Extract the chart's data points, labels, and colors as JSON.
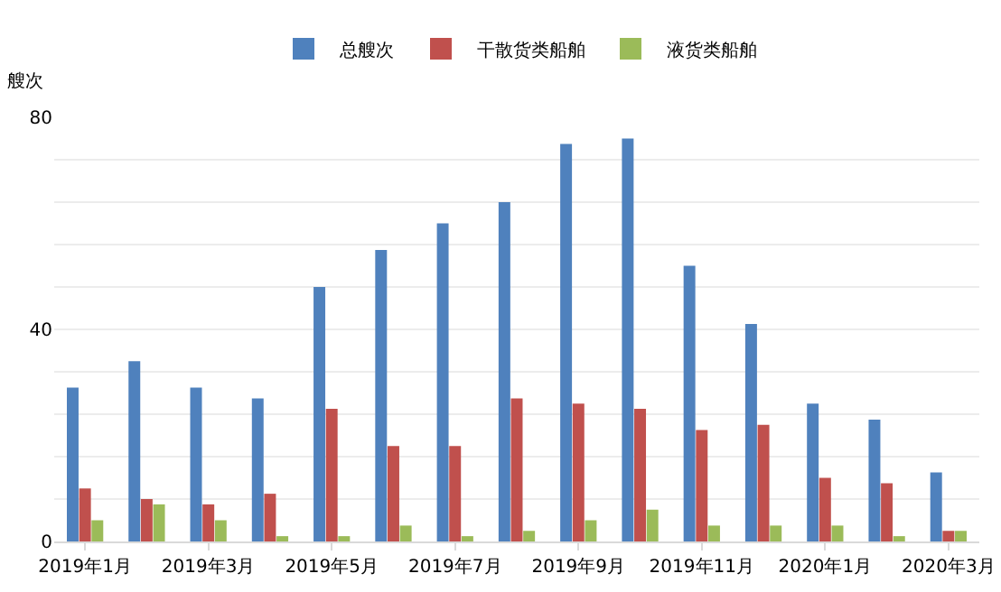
{
  "chart_data": {
    "type": "bar",
    "ylabel": "艘次",
    "categories": [
      "2019年1月",
      null,
      "2019年3月",
      null,
      "2019年5月",
      null,
      "2019年7月",
      null,
      "2019年9月",
      null,
      "2019年11月",
      null,
      "2020年1月",
      null,
      "2020年3月"
    ],
    "series": [
      {
        "name": "总艘次",
        "color": "#4f81bd",
        "values": [
          29,
          34,
          29,
          27,
          48,
          55,
          60,
          64,
          75,
          76,
          52,
          41,
          26,
          23,
          13
        ]
      },
      {
        "name": "干散货类船舶",
        "color": "#c0504d",
        "values": [
          10,
          8,
          7,
          9,
          25,
          18,
          18,
          27,
          26,
          25,
          21,
          22,
          12,
          11,
          2
        ]
      },
      {
        "name": "液货类船舶",
        "color": "#9bbb59",
        "values": [
          4,
          7,
          4,
          1,
          1,
          3,
          1,
          2,
          4,
          6,
          3,
          3,
          3,
          1,
          2
        ]
      }
    ],
    "ylim": [
      0,
      80
    ],
    "yticks": [
      0,
      {
        "value": 8,
        "label": null
      },
      {
        "value": 16,
        "label": null
      },
      {
        "value": 24,
        "label": null
      },
      {
        "value": 32,
        "label": null
      },
      40,
      {
        "value": 48,
        "label": null
      },
      {
        "value": 56,
        "label": null
      },
      {
        "value": 64,
        "label": null
      },
      {
        "value": 72,
        "label": null
      },
      80
    ],
    "grid": "y",
    "legend": "top"
  }
}
